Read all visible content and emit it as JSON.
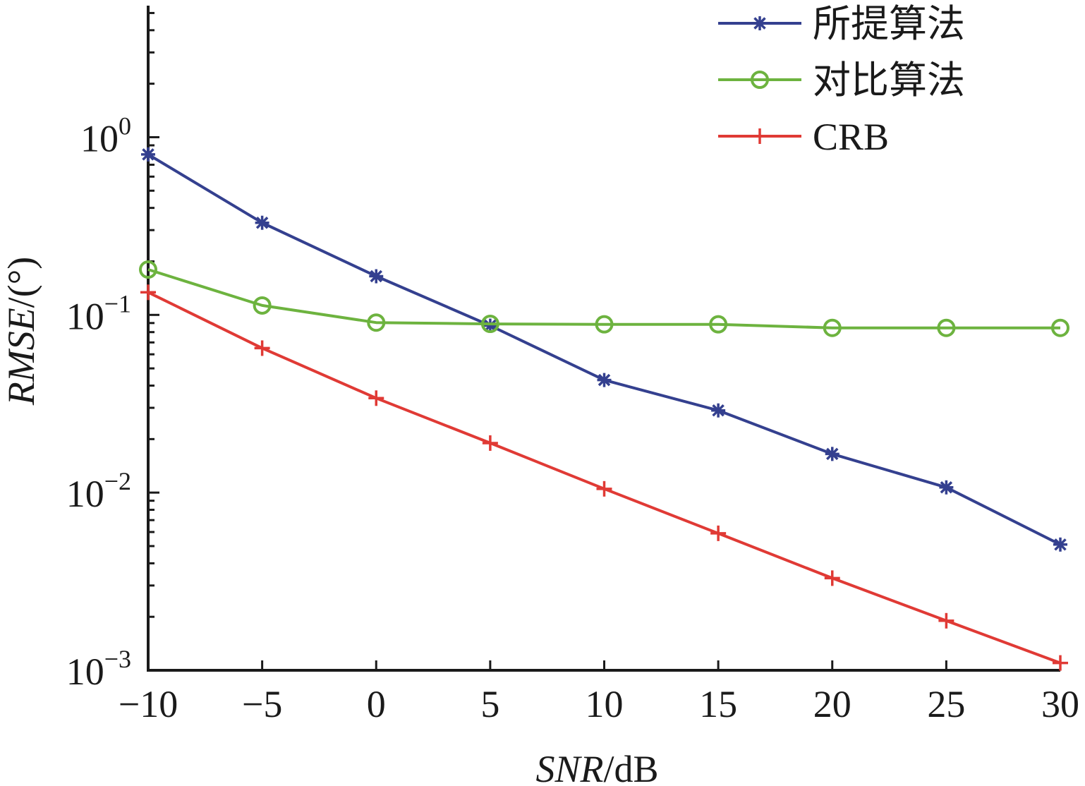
{
  "chart_data": {
    "type": "line",
    "xlabel_italic": "SNR",
    "xlabel_unit": "/dB",
    "ylabel_italic": "RMSE",
    "ylabel_unit": "/(°)",
    "yscale": "log",
    "xlim": [
      -10,
      30
    ],
    "ylim": [
      0.001,
      5.5
    ],
    "x_ticks": [
      -10,
      -5,
      0,
      5,
      10,
      15,
      20,
      25,
      30
    ],
    "x_tick_labels": [
      "−10",
      "−5",
      "0",
      "5",
      "10",
      "15",
      "20",
      "25",
      "30"
    ],
    "y_ticks": [
      {
        "value": 1,
        "base": "10",
        "exp": "0"
      },
      {
        "value": 0.1,
        "base": "10",
        "exp": "−1"
      },
      {
        "value": 0.01,
        "base": "10",
        "exp": "−2"
      },
      {
        "value": 0.001,
        "base": "10",
        "exp": "−3"
      }
    ],
    "legend_position": "top-right",
    "x": [
      -10,
      -5,
      0,
      5,
      10,
      15,
      20,
      25,
      30
    ],
    "series": [
      {
        "name": "所提算法",
        "color": "#34408f",
        "marker": "asterisk",
        "values": [
          0.8,
          0.33,
          0.165,
          0.087,
          0.043,
          0.029,
          0.0165,
          0.0107,
          0.0051
        ]
      },
      {
        "name": "对比算法",
        "color": "#6db33f",
        "marker": "circle",
        "values": [
          0.18,
          0.113,
          0.0905,
          0.089,
          0.0885,
          0.0885,
          0.0845,
          0.0845,
          0.0845
        ]
      },
      {
        "name": "CRB",
        "color": "#e03a35",
        "marker": "plus",
        "values": [
          0.134,
          0.065,
          0.034,
          0.019,
          0.0105,
          0.0059,
          0.0033,
          0.0019,
          0.0011
        ]
      }
    ]
  }
}
